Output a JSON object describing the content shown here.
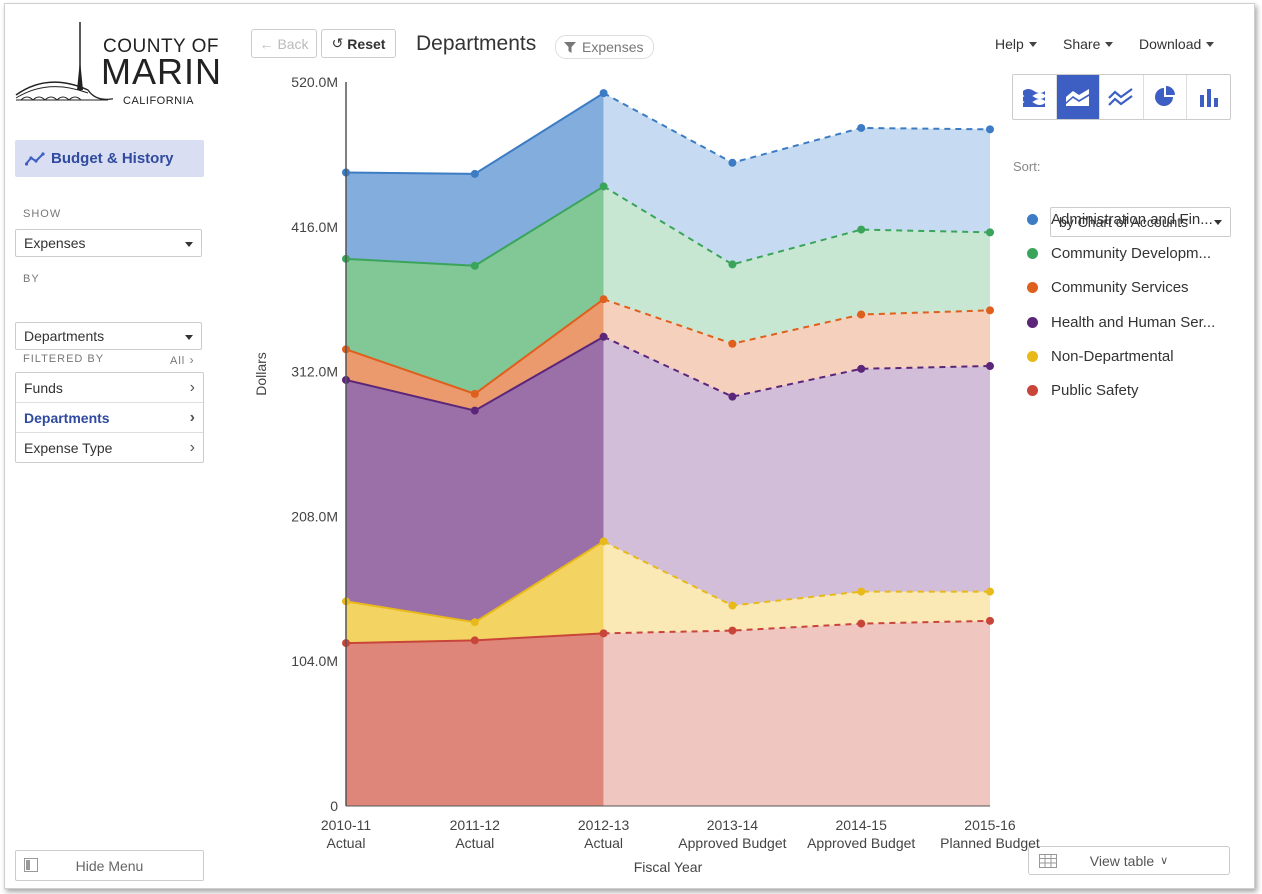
{
  "logo": {
    "line1": "COUNTY OF",
    "line2": "MARIN",
    "line3": "CALIFORNIA"
  },
  "sidebar": {
    "budget_label": "Budget & History",
    "show_label": "SHOW",
    "show_value": "Expenses",
    "by_label": "BY",
    "by_value": "Departments",
    "filtered_label": "FILTERED BY",
    "filtered_all": "All",
    "filters": [
      "Funds",
      "Departments",
      "Expense Type"
    ],
    "active_filter": "Departments",
    "hide_menu": "Hide Menu"
  },
  "toolbar": {
    "back": "Back",
    "reset": "Reset",
    "title": "Departments",
    "filter_pill": "Expenses",
    "help": "Help",
    "share": "Share",
    "download": "Download"
  },
  "chart_types": [
    "stacked-area-wave-icon",
    "stacked-area-icon",
    "line-icon",
    "pie-icon",
    "bar-icon"
  ],
  "active_chart_type": 1,
  "sort": {
    "label": "Sort:",
    "value": "by Chart of Accounts"
  },
  "view_table": "View table",
  "chart_data": {
    "type": "area",
    "stacked": true,
    "xlabel": "Fiscal Year",
    "ylabel": "Dollars",
    "ylim": [
      0,
      520
    ],
    "yticks": [
      "0",
      "104.0M",
      "208.0M",
      "312.0M",
      "416.0M",
      "520.0M"
    ],
    "categories": [
      [
        "2010-11",
        "Actual"
      ],
      [
        "2011-12",
        "Actual"
      ],
      [
        "2012-13",
        "Actual"
      ],
      [
        "2013-14",
        "Approved Budget"
      ],
      [
        "2014-15",
        "Approved Budget"
      ],
      [
        "2015-16",
        "Planned Budget"
      ]
    ],
    "actual_count": 3,
    "units": "millions of dollars (cumulative stack tops)",
    "series": [
      {
        "name": "Public Safety",
        "color": "#c9453a",
        "fill": "#de867a",
        "light": "#f0c6c1",
        "values": [
          117,
          119,
          124,
          126,
          131,
          133
        ]
      },
      {
        "name": "Non-Departmental",
        "color": "#e7b91a",
        "fill": "#f3d462",
        "light": "#fae9b4",
        "values": [
          147,
          132,
          190,
          144,
          154,
          154
        ]
      },
      {
        "name": "Health and Human Services",
        "color": "#5b2679",
        "fill": "#9b6fa8",
        "light": "#d2bed8",
        "values": [
          306,
          284,
          337,
          294,
          314,
          316
        ]
      },
      {
        "name": "Community Services",
        "color": "#df5f1d",
        "fill": "#ea9a6c",
        "light": "#f5d0bc",
        "values": [
          328,
          296,
          364,
          332,
          353,
          356
        ]
      },
      {
        "name": "Community Development",
        "color": "#3aa55a",
        "fill": "#82c796",
        "light": "#c8e7d2",
        "values": [
          393,
          388,
          445,
          389,
          414,
          412
        ]
      },
      {
        "name": "Administration and Finance",
        "color": "#3c7cc4",
        "fill": "#82addc",
        "light": "#c6dbf1",
        "values": [
          455,
          454,
          512,
          462,
          487,
          486
        ]
      }
    ],
    "legend": [
      "Administration and Fin...",
      "Community Developm...",
      "Community Services",
      "Health and Human Ser...",
      "Non-Departmental",
      "Public Safety"
    ]
  }
}
